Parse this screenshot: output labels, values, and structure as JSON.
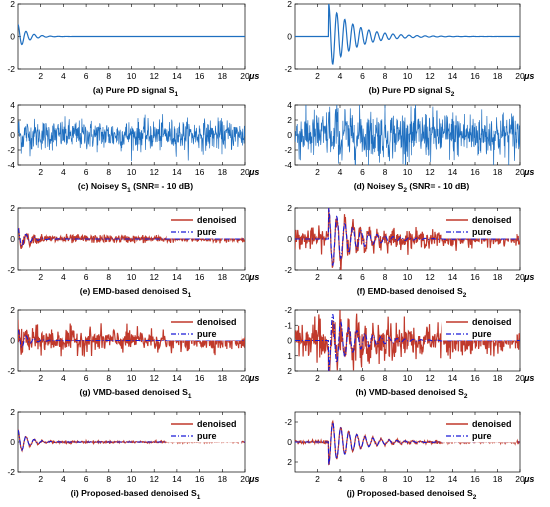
{
  "figure": {
    "x_unit": "μs",
    "legend_labels": [
      "denoised",
      "pure"
    ],
    "colors": {
      "signal": "#1f6fc0",
      "denoised": "#c0392b",
      "pure": "#1a1ad6",
      "noisy": "#1f6fc0"
    }
  },
  "chart_data": [
    {
      "type": "line",
      "caption": "(a) Pure PD signal S",
      "caption_sub": "1",
      "xlim": [
        0,
        20
      ],
      "ylim": [
        -2,
        2
      ],
      "xticks": [
        2,
        4,
        6,
        8,
        10,
        12,
        14,
        16,
        18,
        20
      ],
      "yticks": [
        2,
        0,
        -2
      ],
      "series": [
        {
          "kind": "pure",
          "t0": 0,
          "amp": 0.75,
          "freq": 1.4,
          "decay": 1.2
        }
      ]
    },
    {
      "type": "line",
      "caption": "(b) Pure PD signal S",
      "caption_sub": "2",
      "xlim": [
        0,
        20
      ],
      "ylim": [
        -2,
        2
      ],
      "xticks": [
        2,
        4,
        6,
        8,
        10,
        12,
        14,
        16,
        18,
        20
      ],
      "yticks": [
        2,
        0,
        -2
      ],
      "series": [
        {
          "kind": "pure",
          "t0": 3,
          "amp": 2.0,
          "freq": 1.4,
          "decay": 0.45
        }
      ]
    },
    {
      "type": "line",
      "caption": "(c)  Noisey S",
      "caption_sub": "1",
      "caption_tail": " (SNR= - 10 dB)",
      "xlim": [
        0,
        20
      ],
      "ylim": [
        -4,
        4
      ],
      "xticks": [
        2,
        4,
        6,
        8,
        10,
        12,
        14,
        16,
        18,
        20
      ],
      "yticks": [
        4,
        2,
        0,
        -2,
        -4
      ],
      "series": [
        {
          "kind": "noisy",
          "noise": 1.0
        }
      ]
    },
    {
      "type": "line",
      "caption": "(d)  Noisey S",
      "caption_sub": "2",
      "caption_tail": " (SNR= - 10 dB)",
      "xlim": [
        0,
        20
      ],
      "ylim": [
        -4,
        4
      ],
      "xticks": [
        2,
        4,
        6,
        8,
        10,
        12,
        14,
        16,
        18,
        20
      ],
      "yticks": [
        4,
        2,
        0,
        -2,
        -4
      ],
      "series": [
        {
          "kind": "noisy",
          "noise": 1.6
        }
      ]
    },
    {
      "type": "line",
      "caption": "(e)  EMD-based denoised S",
      "caption_sub": "1",
      "xlim": [
        0,
        20
      ],
      "ylim": [
        -2,
        2
      ],
      "xticks": [
        2,
        4,
        6,
        8,
        10,
        12,
        14,
        16,
        18,
        20
      ],
      "yticks": [
        2,
        0,
        -2
      ],
      "legend": true,
      "series": [
        {
          "kind": "denoised",
          "noise": 0.15
        },
        {
          "kind": "pure",
          "t0": 0,
          "amp": 0.7,
          "freq": 1.4,
          "decay": 1.2
        }
      ]
    },
    {
      "type": "line",
      "caption": "(f)  EMD-based denoised S",
      "caption_sub": "2",
      "xlim": [
        0,
        20
      ],
      "ylim": [
        -2,
        2
      ],
      "xticks": [
        2,
        4,
        6,
        8,
        10,
        12,
        14,
        16,
        18,
        20
      ],
      "yticks": [
        2,
        0,
        -2
      ],
      "legend": true,
      "series": [
        {
          "kind": "denoised",
          "noise": 0.35
        },
        {
          "kind": "pure",
          "t0": 3,
          "amp": 2.0,
          "freq": 1.4,
          "decay": 0.45
        }
      ]
    },
    {
      "type": "line",
      "caption": "(g)  VMD-based denoised S",
      "caption_sub": "1",
      "xlim": [
        0,
        20
      ],
      "ylim": [
        -2,
        2
      ],
      "xticks": [
        2,
        4,
        6,
        8,
        10,
        12,
        14,
        16,
        18,
        20
      ],
      "yticks": [
        2,
        0,
        -2
      ],
      "legend": true,
      "series": [
        {
          "kind": "denoised",
          "noise": 0.45
        },
        {
          "kind": "pure",
          "t0": 0,
          "amp": 0.7,
          "freq": 1.4,
          "decay": 1.2
        }
      ]
    },
    {
      "type": "line",
      "caption": "(h)  VMD-based denoised S",
      "caption_sub": "2",
      "xlim": [
        0,
        20
      ],
      "ylim": [
        -2,
        2
      ],
      "yreversed": true,
      "xticks": [
        2,
        4,
        6,
        8,
        10,
        12,
        14,
        16,
        18,
        20
      ],
      "yticks": [
        -2,
        -1,
        0,
        1,
        2
      ],
      "legend": true,
      "series": [
        {
          "kind": "denoised",
          "noise": 0.7
        },
        {
          "kind": "pure",
          "t0": 3,
          "amp": 2.0,
          "freq": 1.4,
          "decay": 0.45
        }
      ]
    },
    {
      "type": "line",
      "caption": "(i)  Proposed-based denoised S",
      "caption_sub": "1",
      "xlim": [
        0,
        20
      ],
      "ylim": [
        -2,
        2
      ],
      "xticks": [
        2,
        4,
        6,
        8,
        10,
        12,
        14,
        16,
        18,
        20
      ],
      "yticks": [
        2,
        0,
        -2
      ],
      "legend": true,
      "series": [
        {
          "kind": "denoised",
          "noise": 0.04
        },
        {
          "kind": "pure",
          "t0": 0,
          "amp": 0.8,
          "freq": 1.4,
          "decay": 1.1
        }
      ]
    },
    {
      "type": "line",
      "caption": "(j)  Proposed-based denoised S",
      "caption_sub": "2",
      "xlim": [
        0,
        20
      ],
      "ylim": [
        -3,
        3
      ],
      "yreversed": true,
      "xticks": [
        2,
        4,
        6,
        8,
        10,
        12,
        14,
        16,
        18,
        20
      ],
      "yticks": [
        -2,
        0,
        2
      ],
      "legend": true,
      "series": [
        {
          "kind": "denoised",
          "noise": 0.08
        },
        {
          "kind": "pure",
          "t0": 3,
          "amp": 2.3,
          "freq": 1.4,
          "decay": 0.45
        }
      ]
    }
  ]
}
